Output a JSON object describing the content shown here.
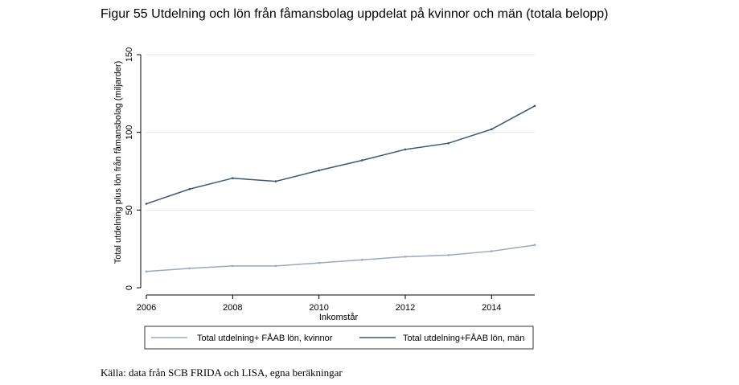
{
  "figure": {
    "title": "Figur 55 Utdelning och lön från fåmansbolag uppdelat på kvinnor och män (totala belopp)",
    "source": "Källa: data från SCB FRIDA och LISA, egna beräkningar"
  },
  "chart_data": {
    "type": "line",
    "title": "",
    "xlabel": "Inkomstår",
    "ylabel": "Total utdelning plus lön från fåmansbolag (miljarder)",
    "x": [
      2006,
      2007,
      2008,
      2009,
      2010,
      2011,
      2012,
      2013,
      2014,
      2015
    ],
    "xlim": [
      2006,
      2015
    ],
    "ylim": [
      0,
      150
    ],
    "xticks": [
      2006,
      2008,
      2010,
      2012,
      2014
    ],
    "yticks": [
      0,
      50,
      100,
      150
    ],
    "grid": true,
    "legend_position": "bottom",
    "series": [
      {
        "name": "Total utdelning+ FÅAB lön, kvinnor",
        "color": "#9aa9bb",
        "values": [
          10.5,
          12.5,
          14,
          14,
          16,
          18,
          20,
          21,
          23.5,
          27.5
        ]
      },
      {
        "name": "Total utdelning+FÅAB lön, män",
        "color": "#3a5874",
        "values": [
          54,
          63.5,
          70.5,
          68.5,
          75.5,
          82,
          89,
          93,
          102,
          117
        ]
      }
    ]
  }
}
